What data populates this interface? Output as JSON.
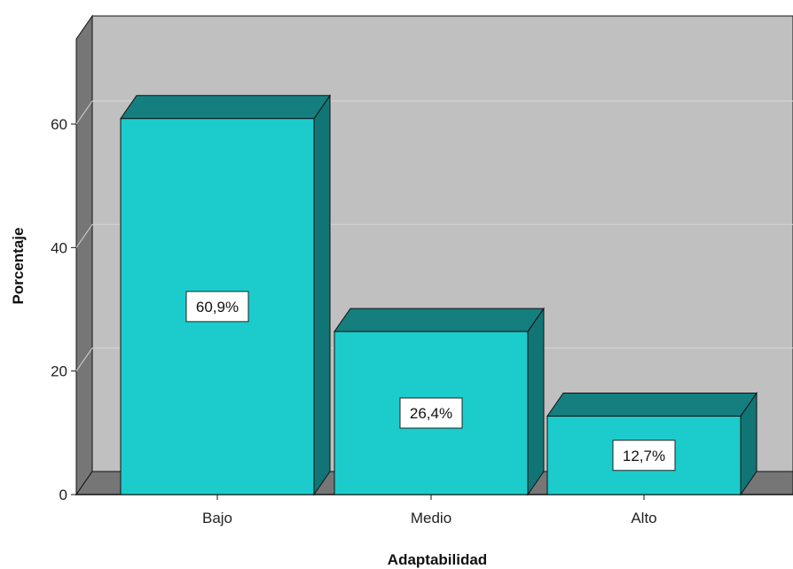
{
  "chart_data": {
    "type": "bar",
    "categories": [
      "Bajo",
      "Medio",
      "Alto"
    ],
    "values": [
      60.9,
      26.4,
      12.7
    ],
    "data_labels": [
      "60,9%",
      "26,4%",
      "12,7%"
    ],
    "xlabel": "Adaptabilidad",
    "ylabel": "Porcentaje",
    "yticks": [
      "0",
      "20",
      "40",
      "60"
    ],
    "ylim": [
      0,
      76
    ],
    "grid": true,
    "three_d": true,
    "legend": "none"
  },
  "colors": {
    "bar_front": "#1ccccc",
    "bar_top": "#157f7f",
    "bar_side": "#127575",
    "back_wall": "#c0c0c0",
    "side_wall": "#767676",
    "floor": "#767676",
    "gridline": "#d3d3d3",
    "outline": "#111111"
  }
}
